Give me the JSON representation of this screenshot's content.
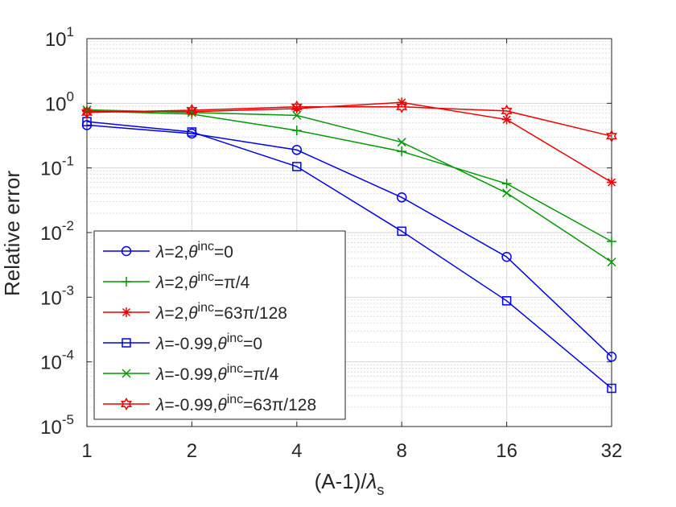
{
  "chart_data": {
    "type": "line",
    "title": "",
    "xscale": "log2",
    "yscale": "log10",
    "categories": [
      "1",
      "2",
      "4",
      "8",
      "16",
      "32"
    ],
    "x": [
      1,
      2,
      4,
      8,
      16,
      32
    ],
    "xlim": [
      1,
      32
    ],
    "ylim": [
      1e-05,
      10
    ],
    "ylabel": "Relative error",
    "xlabel": {
      "main": "(A-1)/",
      "greek": "λ",
      "sub": "s"
    },
    "yticks": [
      {
        "exp": "-5",
        "value": 1e-05
      },
      {
        "exp": "-4",
        "value": 0.0001
      },
      {
        "exp": "-3",
        "value": 0.001
      },
      {
        "exp": "-2",
        "value": 0.01
      },
      {
        "exp": "-1",
        "value": 0.1
      },
      {
        "exp": "0",
        "value": 1
      },
      {
        "exp": "1",
        "value": 10
      }
    ],
    "ytick_base": "10",
    "grid": true,
    "legend_position": "bottom-left",
    "series": [
      {
        "name": "λ=2,θinc=0",
        "lambda": "2",
        "theta": "0",
        "color": "#0000ee",
        "marker": "circle",
        "values": [
          0.46,
          0.34,
          0.19,
          0.035,
          0.0042,
          0.00012
        ]
      },
      {
        "name": "λ=2,θinc=π/4",
        "lambda": "2",
        "theta": "π/4",
        "color": "#009900",
        "marker": "plus",
        "values": [
          0.76,
          0.68,
          0.38,
          0.18,
          0.057,
          0.0073
        ]
      },
      {
        "name": "λ=2,θinc=63π/128",
        "lambda": "2",
        "theta": "63π/128",
        "color": "#ee0000",
        "marker": "asterisk",
        "values": [
          0.75,
          0.74,
          0.83,
          1.03,
          0.56,
          0.06
        ]
      },
      {
        "name": "λ=-0.99,θinc=0",
        "lambda": "-0.99",
        "theta": "0",
        "color": "#0000ee",
        "marker": "square",
        "values": [
          0.52,
          0.36,
          0.105,
          0.0105,
          0.00088,
          3.9e-05
        ]
      },
      {
        "name": "λ=-0.99,θinc=π/4",
        "lambda": "-0.99",
        "theta": "π/4",
        "color": "#009900",
        "marker": "x",
        "values": [
          0.79,
          0.72,
          0.65,
          0.25,
          0.041,
          0.0035
        ]
      },
      {
        "name": "λ=-0.99,θinc=63π/128",
        "lambda": "-0.99",
        "theta": "63π/128",
        "color": "#ee0000",
        "marker": "hexagram",
        "values": [
          0.72,
          0.78,
          0.88,
          0.88,
          0.76,
          0.31
        ]
      }
    ],
    "legend_greek_lambda": "λ",
    "legend_greek_theta": "θ",
    "legend_sup": "inc"
  }
}
